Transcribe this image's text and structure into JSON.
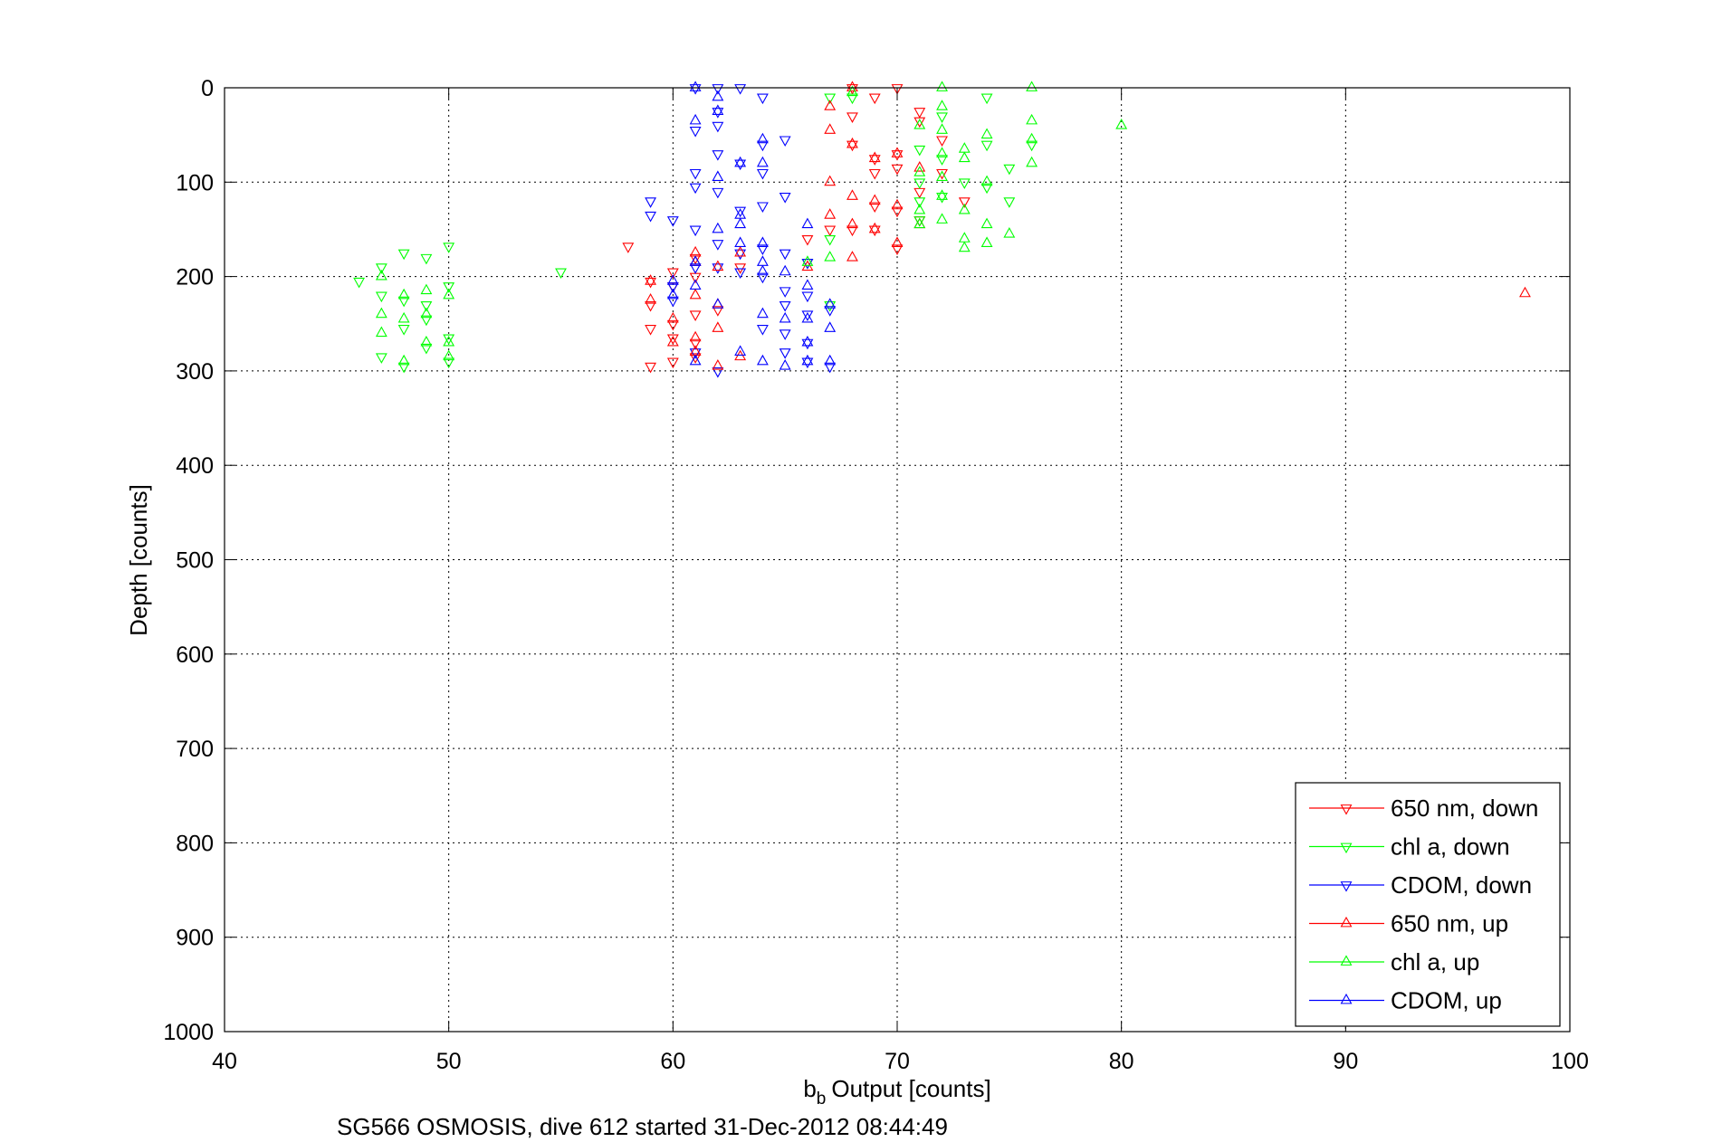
{
  "chart_data": {
    "type": "scatter",
    "title": "",
    "xlabel": "Output [counts]",
    "xlabel_main": "b",
    "xlabel_sub": "b",
    "ylabel": "Depth [counts]",
    "caption": "SG566 OSMOSIS, dive 612 started 31-Dec-2012 08:44:49",
    "xlim": [
      40,
      100
    ],
    "ylim": [
      0,
      1000
    ],
    "y_reversed": true,
    "xticks": [
      40,
      50,
      60,
      70,
      80,
      90,
      100
    ],
    "yticks": [
      0,
      100,
      200,
      300,
      400,
      500,
      600,
      700,
      800,
      900,
      1000
    ],
    "grid": true,
    "legend_position": "bottom-right",
    "series": [
      {
        "name": "650 nm, down",
        "color": "#ff0000",
        "marker": "triangle-down",
        "points": [
          [
            68,
            0
          ],
          [
            70,
            0
          ],
          [
            69,
            10
          ],
          [
            68,
            30
          ],
          [
            71,
            25
          ],
          [
            71,
            35
          ],
          [
            68,
            60
          ],
          [
            69,
            75
          ],
          [
            70,
            85
          ],
          [
            69,
            90
          ],
          [
            70,
            70
          ],
          [
            71,
            110
          ],
          [
            69,
            125
          ],
          [
            70,
            130
          ],
          [
            68,
            150
          ],
          [
            69,
            150
          ],
          [
            70,
            170
          ],
          [
            58,
            168
          ],
          [
            60,
            195
          ],
          [
            61,
            200
          ],
          [
            59,
            205
          ],
          [
            60,
            210
          ],
          [
            59,
            230
          ],
          [
            61,
            240
          ],
          [
            62,
            235
          ],
          [
            59,
            255
          ],
          [
            60,
            250
          ],
          [
            61,
            270
          ],
          [
            60,
            265
          ],
          [
            61,
            285
          ],
          [
            59,
            295
          ],
          [
            60,
            290
          ],
          [
            63,
            190
          ],
          [
            61,
            180
          ],
          [
            66,
            160
          ],
          [
            67,
            150
          ],
          [
            71,
            140
          ],
          [
            72,
            55
          ],
          [
            72,
            90
          ],
          [
            73,
            120
          ]
        ]
      },
      {
        "name": "chl a, down",
        "color": "#00ff00",
        "marker": "triangle-down",
        "points": [
          [
            74,
            10
          ],
          [
            72,
            30
          ],
          [
            71,
            65
          ],
          [
            72,
            75
          ],
          [
            74,
            60
          ],
          [
            73,
            100
          ],
          [
            74,
            105
          ],
          [
            75,
            120
          ],
          [
            76,
            60
          ],
          [
            75,
            85
          ],
          [
            71,
            100
          ],
          [
            71,
            120
          ],
          [
            72,
            115
          ],
          [
            71,
            140
          ],
          [
            67,
            160
          ],
          [
            66,
            185
          ],
          [
            47,
            190
          ],
          [
            48,
            175
          ],
          [
            49,
            180
          ],
          [
            50,
            168
          ],
          [
            47,
            220
          ],
          [
            48,
            225
          ],
          [
            49,
            230
          ],
          [
            50,
            210
          ],
          [
            48,
            255
          ],
          [
            49,
            245
          ],
          [
            50,
            265
          ],
          [
            47,
            285
          ],
          [
            48,
            295
          ],
          [
            49,
            275
          ],
          [
            50,
            290
          ],
          [
            46,
            205
          ],
          [
            55,
            195
          ],
          [
            67,
            230
          ],
          [
            68,
            10
          ],
          [
            67,
            10
          ]
        ]
      },
      {
        "name": "CDOM, down",
        "color": "#0000ff",
        "marker": "triangle-down",
        "points": [
          [
            61,
            0
          ],
          [
            62,
            0
          ],
          [
            63,
            0
          ],
          [
            64,
            10
          ],
          [
            61,
            45
          ],
          [
            62,
            40
          ],
          [
            62,
            25
          ],
          [
            64,
            60
          ],
          [
            65,
            55
          ],
          [
            62,
            70
          ],
          [
            63,
            80
          ],
          [
            64,
            90
          ],
          [
            61,
            90
          ],
          [
            61,
            105
          ],
          [
            62,
            110
          ],
          [
            63,
            130
          ],
          [
            64,
            125
          ],
          [
            65,
            115
          ],
          [
            59,
            120
          ],
          [
            59,
            135
          ],
          [
            60,
            140
          ],
          [
            61,
            150
          ],
          [
            62,
            165
          ],
          [
            63,
            175
          ],
          [
            64,
            170
          ],
          [
            65,
            175
          ],
          [
            66,
            185
          ],
          [
            63,
            195
          ],
          [
            64,
            200
          ],
          [
            61,
            190
          ],
          [
            60,
            210
          ],
          [
            60,
            225
          ],
          [
            65,
            215
          ],
          [
            65,
            230
          ],
          [
            66,
            220
          ],
          [
            66,
            240
          ],
          [
            67,
            235
          ],
          [
            64,
            255
          ],
          [
            65,
            260
          ],
          [
            66,
            270
          ],
          [
            65,
            280
          ],
          [
            66,
            290
          ],
          [
            67,
            295
          ],
          [
            62,
            300
          ],
          [
            61,
            280
          ],
          [
            62,
            190
          ]
        ]
      },
      {
        "name": "650 nm, up",
        "color": "#ff0000",
        "marker": "triangle-up",
        "points": [
          [
            68,
            0
          ],
          [
            67,
            20
          ],
          [
            67,
            45
          ],
          [
            68,
            60
          ],
          [
            69,
            75
          ],
          [
            70,
            70
          ],
          [
            71,
            85
          ],
          [
            67,
            100
          ],
          [
            68,
            115
          ],
          [
            69,
            120
          ],
          [
            70,
            125
          ],
          [
            67,
            135
          ],
          [
            68,
            145
          ],
          [
            69,
            150
          ],
          [
            70,
            165
          ],
          [
            71,
            145
          ],
          [
            68,
            180
          ],
          [
            66,
            190
          ],
          [
            63,
            175
          ],
          [
            62,
            190
          ],
          [
            61,
            185
          ],
          [
            59,
            205
          ],
          [
            61,
            220
          ],
          [
            59,
            225
          ],
          [
            60,
            245
          ],
          [
            62,
            255
          ],
          [
            61,
            265
          ],
          [
            60,
            270
          ],
          [
            61,
            280
          ],
          [
            63,
            285
          ],
          [
            62,
            295
          ],
          [
            98,
            218
          ],
          [
            62,
            230
          ],
          [
            61,
            175
          ]
        ]
      },
      {
        "name": "chl a, up",
        "color": "#00ff00",
        "marker": "triangle-up",
        "points": [
          [
            72,
            0
          ],
          [
            76,
            0
          ],
          [
            68,
            5
          ],
          [
            72,
            20
          ],
          [
            71,
            40
          ],
          [
            72,
            45
          ],
          [
            74,
            50
          ],
          [
            73,
            65
          ],
          [
            76,
            35
          ],
          [
            80,
            40
          ],
          [
            76,
            55
          ],
          [
            72,
            70
          ],
          [
            73,
            75
          ],
          [
            76,
            80
          ],
          [
            71,
            90
          ],
          [
            72,
            95
          ],
          [
            74,
            100
          ],
          [
            72,
            115
          ],
          [
            71,
            130
          ],
          [
            72,
            140
          ],
          [
            73,
            130
          ],
          [
            74,
            145
          ],
          [
            73,
            160
          ],
          [
            74,
            165
          ],
          [
            75,
            155
          ],
          [
            73,
            170
          ],
          [
            71,
            145
          ],
          [
            67,
            180
          ],
          [
            47,
            200
          ],
          [
            48,
            220
          ],
          [
            49,
            215
          ],
          [
            50,
            220
          ],
          [
            47,
            240
          ],
          [
            48,
            245
          ],
          [
            49,
            240
          ],
          [
            50,
            270
          ],
          [
            47,
            260
          ],
          [
            48,
            290
          ],
          [
            49,
            270
          ],
          [
            50,
            285
          ],
          [
            66,
            185
          ]
        ]
      },
      {
        "name": "CDOM, up",
        "color": "#0000ff",
        "marker": "triangle-up",
        "points": [
          [
            61,
            0
          ],
          [
            62,
            10
          ],
          [
            61,
            35
          ],
          [
            62,
            25
          ],
          [
            63,
            80
          ],
          [
            64,
            55
          ],
          [
            64,
            80
          ],
          [
            62,
            95
          ],
          [
            63,
            135
          ],
          [
            63,
            145
          ],
          [
            63,
            165
          ],
          [
            64,
            165
          ],
          [
            62,
            150
          ],
          [
            64,
            195
          ],
          [
            64,
            185
          ],
          [
            65,
            195
          ],
          [
            61,
            210
          ],
          [
            60,
            205
          ],
          [
            60,
            220
          ],
          [
            61,
            185
          ],
          [
            66,
            210
          ],
          [
            67,
            230
          ],
          [
            66,
            245
          ],
          [
            65,
            245
          ],
          [
            66,
            270
          ],
          [
            67,
            255
          ],
          [
            63,
            280
          ],
          [
            64,
            290
          ],
          [
            65,
            295
          ],
          [
            66,
            290
          ],
          [
            67,
            290
          ],
          [
            61,
            290
          ],
          [
            62,
            230
          ],
          [
            66,
            145
          ],
          [
            64,
            240
          ]
        ]
      }
    ]
  }
}
